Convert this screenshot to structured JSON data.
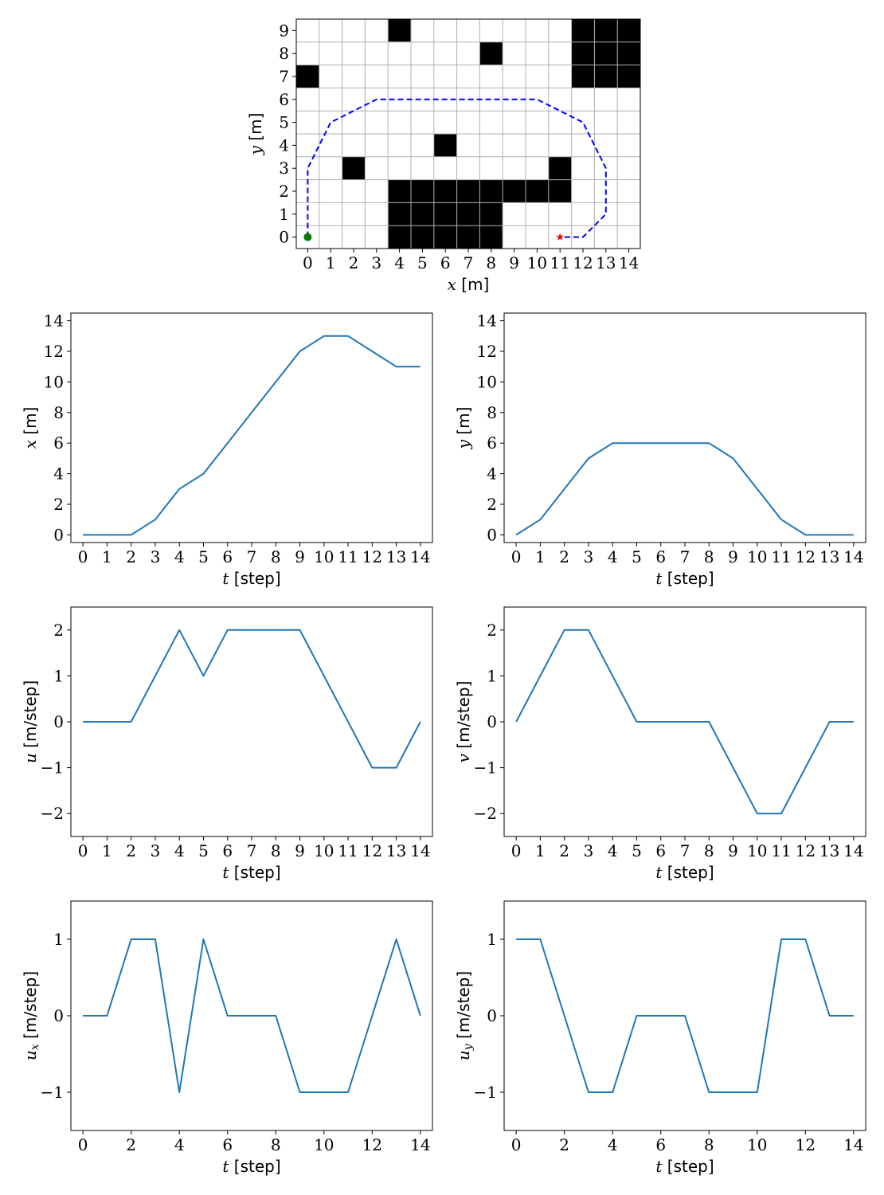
{
  "chart_data": [
    {
      "type": "grid-map",
      "xlabel_var": "x",
      "xlabel_unit": "[m]",
      "ylabel_var": "y",
      "ylabel_unit": "[m]",
      "xlim": [
        -0.5,
        14.5
      ],
      "ylim": [
        -0.5,
        9.5
      ],
      "xticks": [
        "0",
        "1",
        "2",
        "3",
        "4",
        "5",
        "6",
        "7",
        "8",
        "9",
        "10",
        "11",
        "12",
        "13",
        "14"
      ],
      "yticks": [
        "0",
        "1",
        "2",
        "3",
        "4",
        "5",
        "6",
        "7",
        "8",
        "9"
      ],
      "grid": true,
      "obstacles": [
        [
          4,
          9
        ],
        [
          12,
          9
        ],
        [
          13,
          9
        ],
        [
          14,
          9
        ],
        [
          8,
          8
        ],
        [
          12,
          8
        ],
        [
          13,
          8
        ],
        [
          14,
          8
        ],
        [
          0,
          7
        ],
        [
          12,
          7
        ],
        [
          13,
          7
        ],
        [
          14,
          7
        ],
        [
          6,
          4
        ],
        [
          2,
          3
        ],
        [
          11,
          3
        ],
        [
          4,
          2
        ],
        [
          5,
          2
        ],
        [
          6,
          2
        ],
        [
          7,
          2
        ],
        [
          8,
          2
        ],
        [
          9,
          2
        ],
        [
          10,
          2
        ],
        [
          11,
          2
        ],
        [
          4,
          1
        ],
        [
          5,
          1
        ],
        [
          6,
          1
        ],
        [
          7,
          1
        ],
        [
          8,
          1
        ],
        [
          4,
          0
        ],
        [
          5,
          0
        ],
        [
          6,
          0
        ],
        [
          7,
          0
        ],
        [
          8,
          0
        ]
      ],
      "path": {
        "x": [
          0,
          0,
          1,
          3,
          4,
          6,
          8,
          10,
          12,
          13,
          13,
          12,
          11
        ],
        "y": [
          0,
          3,
          5,
          6,
          6,
          6,
          6,
          6,
          5,
          3,
          1,
          0,
          0
        ],
        "color": "#0000ff",
        "style": "dashed"
      },
      "start": {
        "x": 0,
        "y": 0,
        "color": "#008000",
        "marker": "circle"
      },
      "goal": {
        "x": 11,
        "y": 0,
        "color": "#ff0000",
        "marker": "star"
      }
    },
    {
      "type": "line",
      "xlabel_var": "t",
      "xlabel_unit": "[step]",
      "ylabel_var": "x",
      "ylabel_unit": "[m]",
      "xlim": [
        -0.5,
        14.5
      ],
      "ylim": [
        -0.5,
        14.5
      ],
      "xticks": [
        "0",
        "1",
        "2",
        "3",
        "4",
        "5",
        "6",
        "7",
        "8",
        "9",
        "10",
        "11",
        "12",
        "13",
        "14"
      ],
      "yticks": [
        "0",
        "2",
        "4",
        "6",
        "8",
        "10",
        "12",
        "14"
      ],
      "series": [
        {
          "color": "#1f77b4",
          "x": [
            0,
            1,
            2,
            3,
            4,
            5,
            6,
            7,
            8,
            9,
            10,
            11,
            12,
            13,
            14
          ],
          "values": [
            0,
            0,
            0,
            1,
            3,
            4,
            6,
            8,
            10,
            12,
            13,
            13,
            12,
            11,
            11
          ]
        }
      ]
    },
    {
      "type": "line",
      "xlabel_var": "t",
      "xlabel_unit": "[step]",
      "ylabel_var": "y",
      "ylabel_unit": "[m]",
      "xlim": [
        -0.5,
        14.5
      ],
      "ylim": [
        -0.5,
        14.5
      ],
      "xticks": [
        "0",
        "1",
        "2",
        "3",
        "4",
        "5",
        "6",
        "7",
        "8",
        "9",
        "10",
        "11",
        "12",
        "13",
        "14"
      ],
      "yticks": [
        "0",
        "2",
        "4",
        "6",
        "8",
        "10",
        "12",
        "14"
      ],
      "series": [
        {
          "color": "#1f77b4",
          "x": [
            0,
            1,
            2,
            3,
            4,
            5,
            6,
            7,
            8,
            9,
            10,
            11,
            12,
            13,
            14
          ],
          "values": [
            0,
            1,
            3,
            5,
            6,
            6,
            6,
            6,
            6,
            5,
            3,
            1,
            0,
            0,
            0
          ]
        }
      ]
    },
    {
      "type": "line",
      "xlabel_var": "t",
      "xlabel_unit": "[step]",
      "ylabel_var": "u",
      "ylabel_unit": "[m/step]",
      "xlim": [
        -0.5,
        14.5
      ],
      "ylim": [
        -2.5,
        2.5
      ],
      "xticks": [
        "0",
        "1",
        "2",
        "3",
        "4",
        "5",
        "6",
        "7",
        "8",
        "9",
        "10",
        "11",
        "12",
        "13",
        "14"
      ],
      "yticks": [
        "−2",
        "−1",
        "0",
        "1",
        "2"
      ],
      "series": [
        {
          "color": "#1f77b4",
          "x": [
            0,
            1,
            2,
            3,
            4,
            5,
            6,
            7,
            8,
            9,
            10,
            11,
            12,
            13,
            14
          ],
          "values": [
            0,
            0,
            0,
            1,
            2,
            1,
            2,
            2,
            2,
            2,
            1,
            0,
            -1,
            -1,
            0
          ]
        }
      ]
    },
    {
      "type": "line",
      "xlabel_var": "t",
      "xlabel_unit": "[step]",
      "ylabel_var": "v",
      "ylabel_unit": "[m/step]",
      "xlim": [
        -0.5,
        14.5
      ],
      "ylim": [
        -2.5,
        2.5
      ],
      "xticks": [
        "0",
        "1",
        "2",
        "3",
        "4",
        "5",
        "6",
        "7",
        "8",
        "9",
        "10",
        "11",
        "12",
        "13",
        "14"
      ],
      "yticks": [
        "−2",
        "−1",
        "0",
        "1",
        "2"
      ],
      "series": [
        {
          "color": "#1f77b4",
          "x": [
            0,
            1,
            2,
            3,
            4,
            5,
            6,
            7,
            8,
            9,
            10,
            11,
            12,
            13,
            14
          ],
          "values": [
            0,
            1,
            2,
            2,
            1,
            0,
            0,
            0,
            0,
            -1,
            -2,
            -2,
            -1,
            0,
            0
          ]
        }
      ]
    },
    {
      "type": "line",
      "xlabel_var": "t",
      "xlabel_unit": "[step]",
      "ylabel_var": "u",
      "ylabel_sub": "x",
      "ylabel_unit": "[m/step]",
      "xlim": [
        -0.5,
        14.5
      ],
      "ylim": [
        -1.5,
        1.5
      ],
      "xticks": [
        "0",
        "2",
        "4",
        "6",
        "8",
        "10",
        "12",
        "14"
      ],
      "yticks": [
        "−1",
        "0",
        "1"
      ],
      "series": [
        {
          "color": "#1f77b4",
          "x": [
            0,
            1,
            2,
            3,
            4,
            5,
            6,
            7,
            8,
            9,
            10,
            11,
            12,
            13,
            14
          ],
          "values": [
            0,
            0,
            1,
            1,
            -1,
            1,
            0,
            0,
            0,
            -1,
            -1,
            -1,
            0,
            1,
            0
          ]
        }
      ]
    },
    {
      "type": "line",
      "xlabel_var": "t",
      "xlabel_unit": "[step]",
      "ylabel_var": "u",
      "ylabel_sub": "y",
      "ylabel_unit": "[m/step]",
      "xlim": [
        -0.5,
        14.5
      ],
      "ylim": [
        -1.5,
        1.5
      ],
      "xticks": [
        "0",
        "2",
        "4",
        "6",
        "8",
        "10",
        "12",
        "14"
      ],
      "yticks": [
        "−1",
        "0",
        "1"
      ],
      "series": [
        {
          "color": "#1f77b4",
          "x": [
            0,
            1,
            2,
            3,
            4,
            5,
            6,
            7,
            8,
            9,
            10,
            11,
            12,
            13,
            14
          ],
          "values": [
            1,
            1,
            0,
            -1,
            -1,
            0,
            0,
            0,
            -1,
            -1,
            -1,
            1,
            1,
            0,
            0
          ]
        }
      ]
    }
  ]
}
